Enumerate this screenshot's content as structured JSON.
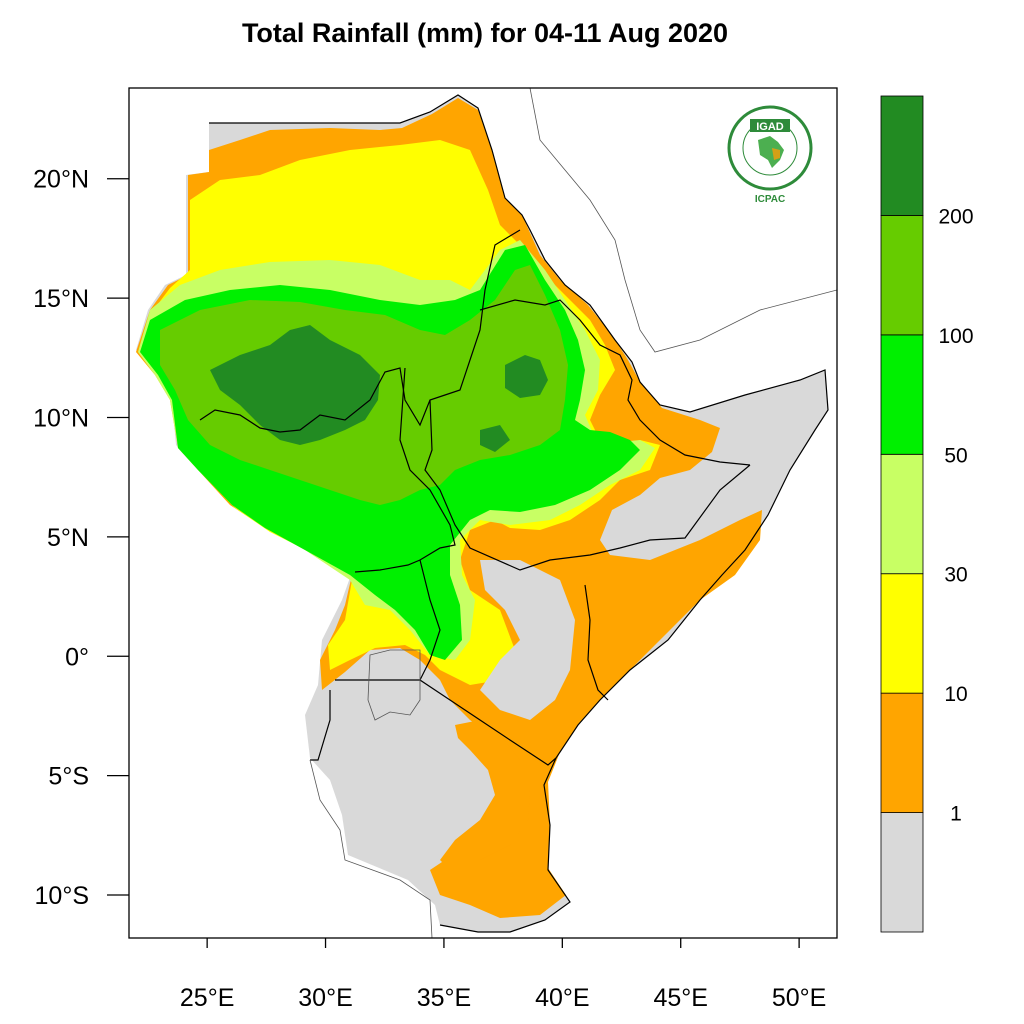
{
  "title": "Total Rainfall (mm) for 04-11 Aug 2020",
  "logo": {
    "name": "IGAD",
    "sub": "ICPAC",
    "ring_text": "INTERGOVERNMENTAL AUTHORITY ON DEVELOPMENT"
  },
  "x_ticks": [
    {
      "value": 25,
      "label": "25°E"
    },
    {
      "value": 30,
      "label": "30°E"
    },
    {
      "value": 35,
      "label": "35°E"
    },
    {
      "value": 40,
      "label": "40°E"
    },
    {
      "value": 45,
      "label": "45°E"
    },
    {
      "value": 50,
      "label": "50°E"
    }
  ],
  "y_ticks": [
    {
      "value": 20,
      "label": "20°N"
    },
    {
      "value": 15,
      "label": "15°N"
    },
    {
      "value": 10,
      "label": "10°N"
    },
    {
      "value": 5,
      "label": "5°N"
    },
    {
      "value": 0,
      "label": "0°"
    },
    {
      "value": -5,
      "label": "5°S"
    },
    {
      "value": -10,
      "label": "10°S"
    }
  ],
  "extent": {
    "lon": [
      21.7,
      51.6
    ],
    "lat": [
      -11.8,
      23.8
    ]
  },
  "colorbar": {
    "colors": [
      "#d9d9d9",
      "#ffa500",
      "#ffff00",
      "#c8ff64",
      "#00f000",
      "#66cc00",
      "#228b22"
    ],
    "labels": [
      "1",
      "10",
      "30",
      "50",
      "100",
      "200"
    ]
  },
  "colors": {
    "gray": "#d9d9d9",
    "orange": "#ffa500",
    "yellow": "#ffff00",
    "lightgreen": "#c8ff64",
    "green": "#00f000",
    "midgreen": "#66cc00",
    "darkgreen": "#228b22"
  }
}
